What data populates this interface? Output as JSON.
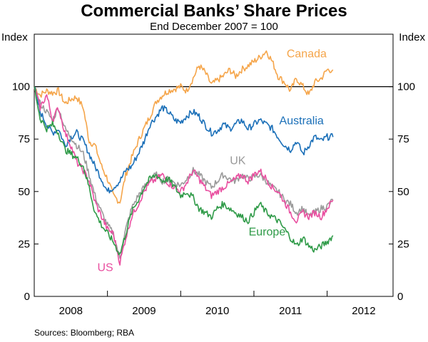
{
  "chart_data": {
    "type": "line",
    "title": "Commercial Banks’ Share Prices",
    "subtitle": "End December 2007 = 100",
    "ylabel_left": "Index",
    "ylabel_right": "Index",
    "source": "Sources: Bloomberg; RBA",
    "ylim": [
      0,
      125
    ],
    "yticks": [
      0,
      25,
      50,
      75,
      100
    ],
    "xlim": [
      2008.0,
      2012.9
    ],
    "xticks": [
      {
        "label": "2008",
        "at": 2008.5
      },
      {
        "label": "2009",
        "at": 2009.5
      },
      {
        "label": "2010",
        "at": 2010.5
      },
      {
        "label": "2011",
        "at": 2011.5
      },
      {
        "label": "2012",
        "at": 2012.5
      }
    ],
    "year_boundaries": [
      2009.0,
      2010.0,
      2011.0,
      2012.0
    ],
    "reference_line": 100,
    "colors": {
      "canada": "#f5a54a",
      "australia": "#1a6fb8",
      "uk": "#9a9a9a",
      "us": "#e94fa0",
      "europe": "#2e9a47",
      "refline": "#000000"
    },
    "series": [
      {
        "name": "Canada",
        "key": "canada",
        "points": [
          [
            2008.0,
            100
          ],
          [
            2008.08,
            96
          ],
          [
            2008.17,
            98
          ],
          [
            2008.25,
            97
          ],
          [
            2008.33,
            98
          ],
          [
            2008.42,
            92
          ],
          [
            2008.5,
            94
          ],
          [
            2008.58,
            95
          ],
          [
            2008.67,
            90
          ],
          [
            2008.75,
            74
          ],
          [
            2008.83,
            72
          ],
          [
            2008.92,
            62
          ],
          [
            2009.0,
            56
          ],
          [
            2009.08,
            48
          ],
          [
            2009.17,
            45
          ],
          [
            2009.25,
            58
          ],
          [
            2009.33,
            66
          ],
          [
            2009.42,
            74
          ],
          [
            2009.5,
            80
          ],
          [
            2009.58,
            86
          ],
          [
            2009.67,
            93
          ],
          [
            2009.75,
            96
          ],
          [
            2009.83,
            98
          ],
          [
            2009.92,
            99
          ],
          [
            2010.0,
            100
          ],
          [
            2010.08,
            98
          ],
          [
            2010.17,
            104
          ],
          [
            2010.25,
            110
          ],
          [
            2010.33,
            107
          ],
          [
            2010.42,
            101
          ],
          [
            2010.5,
            103
          ],
          [
            2010.58,
            105
          ],
          [
            2010.67,
            108
          ],
          [
            2010.75,
            105
          ],
          [
            2010.83,
            108
          ],
          [
            2010.92,
            110
          ],
          [
            2011.0,
            112
          ],
          [
            2011.08,
            114
          ],
          [
            2011.17,
            117
          ],
          [
            2011.25,
            112
          ],
          [
            2011.33,
            105
          ],
          [
            2011.42,
            102
          ],
          [
            2011.5,
            98
          ],
          [
            2011.58,
            104
          ],
          [
            2011.67,
            100
          ],
          [
            2011.75,
            96
          ],
          [
            2011.83,
            102
          ],
          [
            2011.92,
            104
          ],
          [
            2012.0,
            108
          ],
          [
            2012.08,
            108
          ]
        ]
      },
      {
        "name": "Australia",
        "key": "australia",
        "points": [
          [
            2008.0,
            100
          ],
          [
            2008.08,
            88
          ],
          [
            2008.17,
            82
          ],
          [
            2008.25,
            78
          ],
          [
            2008.33,
            80
          ],
          [
            2008.42,
            72
          ],
          [
            2008.5,
            76
          ],
          [
            2008.58,
            78
          ],
          [
            2008.67,
            74
          ],
          [
            2008.75,
            68
          ],
          [
            2008.83,
            62
          ],
          [
            2008.92,
            56
          ],
          [
            2009.0,
            50
          ],
          [
            2009.08,
            52
          ],
          [
            2009.17,
            55
          ],
          [
            2009.25,
            60
          ],
          [
            2009.33,
            62
          ],
          [
            2009.42,
            68
          ],
          [
            2009.5,
            74
          ],
          [
            2009.58,
            82
          ],
          [
            2009.67,
            86
          ],
          [
            2009.75,
            90
          ],
          [
            2009.83,
            88
          ],
          [
            2009.92,
            84
          ],
          [
            2010.0,
            83
          ],
          [
            2010.08,
            86
          ],
          [
            2010.17,
            88
          ],
          [
            2010.25,
            86
          ],
          [
            2010.33,
            82
          ],
          [
            2010.42,
            78
          ],
          [
            2010.5,
            79
          ],
          [
            2010.58,
            82
          ],
          [
            2010.67,
            80
          ],
          [
            2010.75,
            82
          ],
          [
            2010.83,
            84
          ],
          [
            2010.92,
            80
          ],
          [
            2011.0,
            82
          ],
          [
            2011.08,
            84
          ],
          [
            2011.17,
            82
          ],
          [
            2011.25,
            80
          ],
          [
            2011.33,
            76
          ],
          [
            2011.42,
            72
          ],
          [
            2011.5,
            70
          ],
          [
            2011.58,
            74
          ],
          [
            2011.67,
            68
          ],
          [
            2011.75,
            72
          ],
          [
            2011.83,
            76
          ],
          [
            2011.92,
            74
          ],
          [
            2012.0,
            76
          ],
          [
            2012.08,
            76
          ]
        ]
      },
      {
        "name": "UK",
        "key": "uk",
        "points": [
          [
            2008.0,
            100
          ],
          [
            2008.08,
            92
          ],
          [
            2008.17,
            88
          ],
          [
            2008.25,
            84
          ],
          [
            2008.33,
            90
          ],
          [
            2008.42,
            80
          ],
          [
            2008.5,
            76
          ],
          [
            2008.58,
            72
          ],
          [
            2008.67,
            68
          ],
          [
            2008.75,
            58
          ],
          [
            2008.83,
            48
          ],
          [
            2008.92,
            40
          ],
          [
            2009.0,
            34
          ],
          [
            2009.08,
            30
          ],
          [
            2009.17,
            18
          ],
          [
            2009.25,
            32
          ],
          [
            2009.33,
            42
          ],
          [
            2009.42,
            48
          ],
          [
            2009.5,
            52
          ],
          [
            2009.58,
            56
          ],
          [
            2009.67,
            58
          ],
          [
            2009.75,
            55
          ],
          [
            2009.83,
            56
          ],
          [
            2009.92,
            54
          ],
          [
            2010.0,
            53
          ],
          [
            2010.08,
            56
          ],
          [
            2010.17,
            60
          ],
          [
            2010.25,
            58
          ],
          [
            2010.33,
            55
          ],
          [
            2010.42,
            52
          ],
          [
            2010.5,
            55
          ],
          [
            2010.58,
            58
          ],
          [
            2010.67,
            56
          ],
          [
            2010.75,
            55
          ],
          [
            2010.83,
            58
          ],
          [
            2010.92,
            56
          ],
          [
            2011.0,
            57
          ],
          [
            2011.08,
            58
          ],
          [
            2011.17,
            55
          ],
          [
            2011.25,
            52
          ],
          [
            2011.33,
            50
          ],
          [
            2011.42,
            46
          ],
          [
            2011.5,
            44
          ],
          [
            2011.58,
            40
          ],
          [
            2011.67,
            42
          ],
          [
            2011.75,
            38
          ],
          [
            2011.83,
            40
          ],
          [
            2011.92,
            42
          ],
          [
            2012.0,
            43
          ],
          [
            2012.08,
            46
          ]
        ]
      },
      {
        "name": "US",
        "key": "us",
        "points": [
          [
            2008.0,
            100
          ],
          [
            2008.08,
            90
          ],
          [
            2008.17,
            96
          ],
          [
            2008.25,
            84
          ],
          [
            2008.33,
            90
          ],
          [
            2008.42,
            78
          ],
          [
            2008.5,
            72
          ],
          [
            2008.58,
            64
          ],
          [
            2008.67,
            60
          ],
          [
            2008.75,
            55
          ],
          [
            2008.83,
            45
          ],
          [
            2008.92,
            38
          ],
          [
            2009.0,
            32
          ],
          [
            2009.08,
            30
          ],
          [
            2009.17,
            16
          ],
          [
            2009.25,
            28
          ],
          [
            2009.33,
            38
          ],
          [
            2009.42,
            44
          ],
          [
            2009.5,
            50
          ],
          [
            2009.58,
            54
          ],
          [
            2009.67,
            56
          ],
          [
            2009.75,
            58
          ],
          [
            2009.83,
            54
          ],
          [
            2009.92,
            52
          ],
          [
            2010.0,
            50
          ],
          [
            2010.08,
            54
          ],
          [
            2010.17,
            60
          ],
          [
            2010.25,
            56
          ],
          [
            2010.33,
            52
          ],
          [
            2010.42,
            48
          ],
          [
            2010.5,
            50
          ],
          [
            2010.58,
            52
          ],
          [
            2010.67,
            54
          ],
          [
            2010.75,
            56
          ],
          [
            2010.83,
            58
          ],
          [
            2010.92,
            55
          ],
          [
            2011.0,
            58
          ],
          [
            2011.08,
            60
          ],
          [
            2011.17,
            56
          ],
          [
            2011.25,
            52
          ],
          [
            2011.33,
            50
          ],
          [
            2011.42,
            45
          ],
          [
            2011.5,
            40
          ],
          [
            2011.58,
            36
          ],
          [
            2011.67,
            40
          ],
          [
            2011.75,
            38
          ],
          [
            2011.83,
            40
          ],
          [
            2011.92,
            38
          ],
          [
            2012.0,
            42
          ],
          [
            2012.08,
            46
          ]
        ]
      },
      {
        "name": "Europe",
        "key": "europe",
        "points": [
          [
            2008.0,
            100
          ],
          [
            2008.08,
            85
          ],
          [
            2008.17,
            80
          ],
          [
            2008.25,
            82
          ],
          [
            2008.33,
            78
          ],
          [
            2008.42,
            70
          ],
          [
            2008.5,
            68
          ],
          [
            2008.58,
            66
          ],
          [
            2008.67,
            62
          ],
          [
            2008.75,
            52
          ],
          [
            2008.83,
            40
          ],
          [
            2008.92,
            34
          ],
          [
            2009.0,
            30
          ],
          [
            2009.08,
            26
          ],
          [
            2009.17,
            20
          ],
          [
            2009.25,
            30
          ],
          [
            2009.33,
            40
          ],
          [
            2009.42,
            46
          ],
          [
            2009.5,
            52
          ],
          [
            2009.58,
            56
          ],
          [
            2009.67,
            58
          ],
          [
            2009.75,
            55
          ],
          [
            2009.83,
            56
          ],
          [
            2009.92,
            52
          ],
          [
            2010.0,
            48
          ],
          [
            2010.08,
            50
          ],
          [
            2010.17,
            47
          ],
          [
            2010.25,
            42
          ],
          [
            2010.33,
            40
          ],
          [
            2010.42,
            38
          ],
          [
            2010.5,
            42
          ],
          [
            2010.58,
            44
          ],
          [
            2010.67,
            42
          ],
          [
            2010.75,
            40
          ],
          [
            2010.83,
            38
          ],
          [
            2010.92,
            36
          ],
          [
            2011.0,
            40
          ],
          [
            2011.08,
            44
          ],
          [
            2011.17,
            40
          ],
          [
            2011.25,
            38
          ],
          [
            2011.33,
            36
          ],
          [
            2011.42,
            32
          ],
          [
            2011.5,
            28
          ],
          [
            2011.58,
            24
          ],
          [
            2011.67,
            28
          ],
          [
            2011.75,
            24
          ],
          [
            2011.83,
            22
          ],
          [
            2011.92,
            24
          ],
          [
            2012.0,
            26
          ],
          [
            2012.08,
            29
          ]
        ]
      }
    ],
    "labels": [
      {
        "key": "canada",
        "text": "Canada",
        "x": 2011.72,
        "y": 114
      },
      {
        "key": "australia",
        "text": "Australia",
        "x": 2011.65,
        "y": 82
      },
      {
        "key": "uk",
        "text": "UK",
        "x": 2010.78,
        "y": 63
      },
      {
        "key": "us",
        "text": "US",
        "x": 2008.97,
        "y": 12
      },
      {
        "key": "europe",
        "text": "Europe",
        "x": 2011.18,
        "y": 29
      }
    ]
  }
}
